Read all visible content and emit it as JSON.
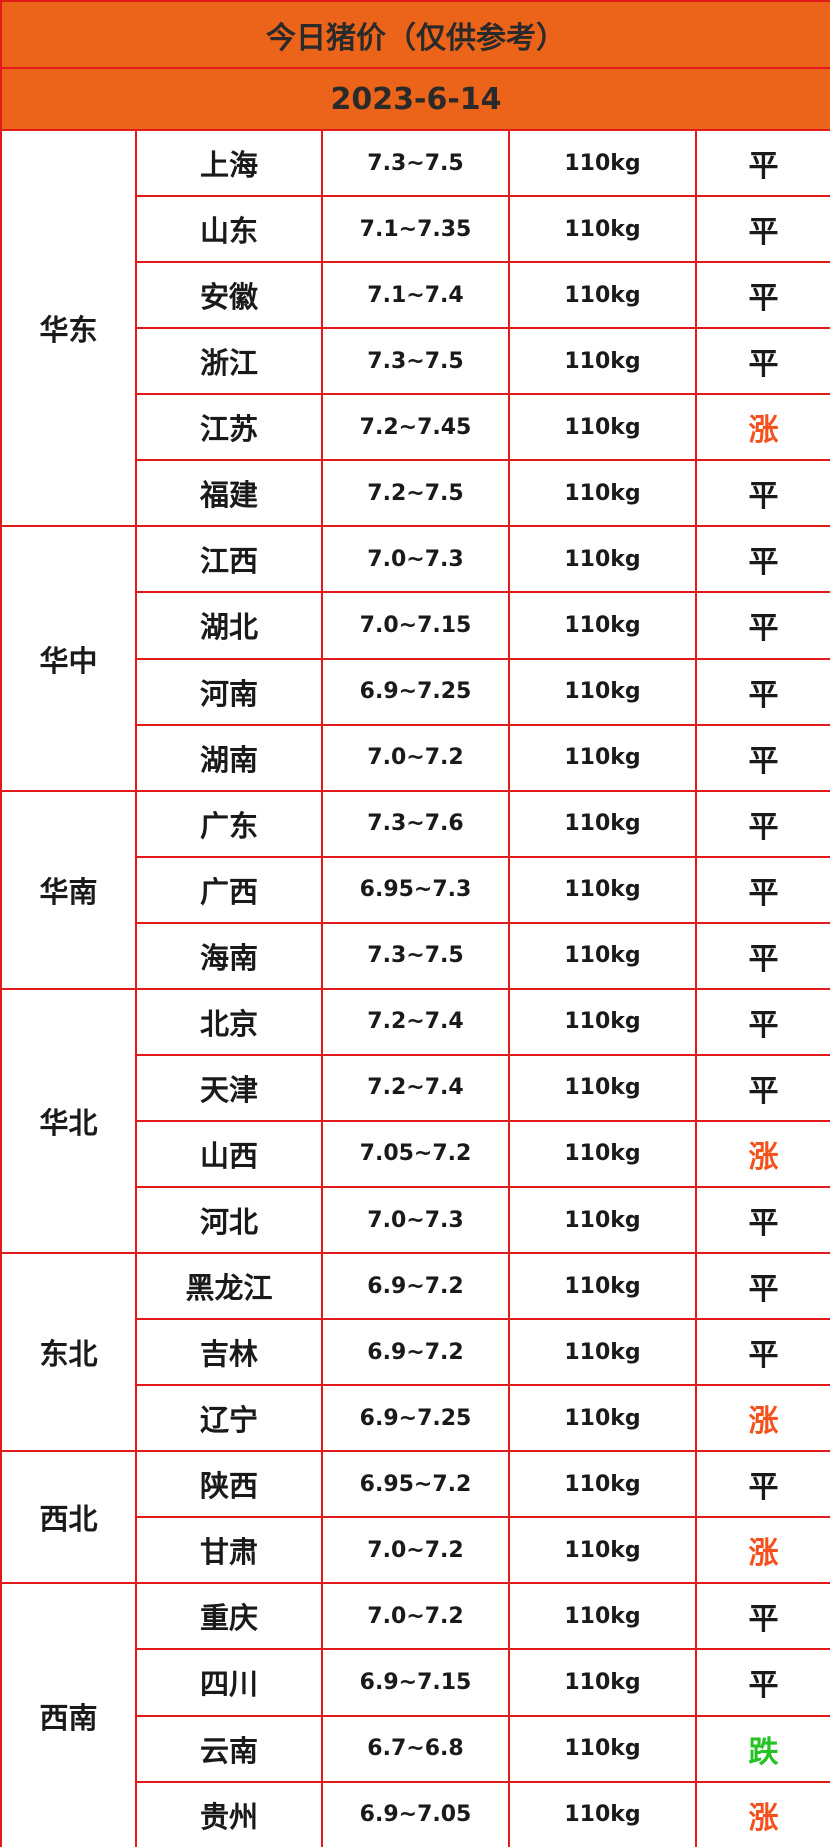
{
  "header": {
    "title": "今日猪价（仅供参考）",
    "date": "2023-6-14"
  },
  "trend_colors": {
    "平": "#1a1a1a",
    "涨": "#f4511e",
    "跌": "#22c322"
  },
  "regions": [
    {
      "name": "华东",
      "rows": [
        [
          "上海",
          "7.3~7.5",
          "110kg",
          "平"
        ],
        [
          "山东",
          "7.1~7.35",
          "110kg",
          "平"
        ],
        [
          "安徽",
          "7.1~7.4",
          "110kg",
          "平"
        ],
        [
          "浙江",
          "7.3~7.5",
          "110kg",
          "平"
        ],
        [
          "江苏",
          "7.2~7.45",
          "110kg",
          "涨"
        ],
        [
          "福建",
          "7.2~7.5",
          "110kg",
          "平"
        ]
      ]
    },
    {
      "name": "华中",
      "rows": [
        [
          "江西",
          "7.0~7.3",
          "110kg",
          "平"
        ],
        [
          "湖北",
          "7.0~7.15",
          "110kg",
          "平"
        ],
        [
          "河南",
          "6.9~7.25",
          "110kg",
          "平"
        ],
        [
          "湖南",
          "7.0~7.2",
          "110kg",
          "平"
        ]
      ]
    },
    {
      "name": "华南",
      "rows": [
        [
          "广东",
          "7.3~7.6",
          "110kg",
          "平"
        ],
        [
          "广西",
          "6.95~7.3",
          "110kg",
          "平"
        ],
        [
          "海南",
          "7.3~7.5",
          "110kg",
          "平"
        ]
      ]
    },
    {
      "name": "华北",
      "rows": [
        [
          "北京",
          "7.2~7.4",
          "110kg",
          "平"
        ],
        [
          "天津",
          "7.2~7.4",
          "110kg",
          "平"
        ],
        [
          "山西",
          "7.05~7.2",
          "110kg",
          "涨"
        ],
        [
          "河北",
          "7.0~7.3",
          "110kg",
          "平"
        ]
      ]
    },
    {
      "name": "东北",
      "rows": [
        [
          "黑龙江",
          "6.9~7.2",
          "110kg",
          "平"
        ],
        [
          "吉林",
          "6.9~7.2",
          "110kg",
          "平"
        ],
        [
          "辽宁",
          "6.9~7.25",
          "110kg",
          "涨"
        ]
      ]
    },
    {
      "name": "西北",
      "rows": [
        [
          "陕西",
          "6.95~7.2",
          "110kg",
          "平"
        ],
        [
          "甘肃",
          "7.0~7.2",
          "110kg",
          "涨"
        ]
      ]
    },
    {
      "name": "西南",
      "rows": [
        [
          "重庆",
          "7.0~7.2",
          "110kg",
          "平"
        ],
        [
          "四川",
          "6.9~7.15",
          "110kg",
          "平"
        ],
        [
          "云南",
          "6.7~6.8",
          "110kg",
          "跌"
        ],
        [
          "贵州",
          "6.9~7.05",
          "110kg",
          "涨"
        ]
      ]
    }
  ]
}
